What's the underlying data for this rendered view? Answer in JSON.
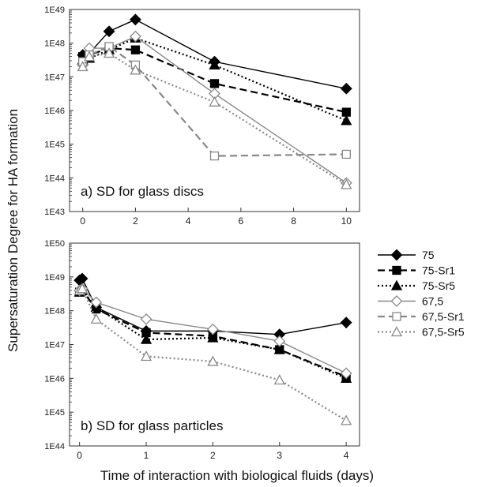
{
  "y_axis_title": "Supersaturation Degree for HA formation",
  "x_axis_title": "Time of interaction with biological fluids (days)",
  "legend": [
    {
      "key": "75",
      "label": "75",
      "color": "#000000",
      "dash": "solid",
      "marker": "diamond",
      "fill": "filled"
    },
    {
      "key": "75-Sr1",
      "label": "75-Sr1",
      "color": "#000000",
      "dash": "dash",
      "marker": "square",
      "fill": "filled"
    },
    {
      "key": "75-Sr5",
      "label": "75-Sr5",
      "color": "#000000",
      "dash": "dot",
      "marker": "triangle",
      "fill": "filled"
    },
    {
      "key": "67,5",
      "label": "67,5",
      "color": "#888888",
      "dash": "solid",
      "marker": "diamond",
      "fill": "open"
    },
    {
      "key": "67,5-Sr1",
      "label": "67,5-Sr1",
      "color": "#888888",
      "dash": "dash",
      "marker": "square",
      "fill": "open"
    },
    {
      "key": "67,5-Sr5",
      "label": "67,5-Sr5",
      "color": "#888888",
      "dash": "dot",
      "marker": "triangle",
      "fill": "open"
    }
  ],
  "chart_data": [
    {
      "type": "line",
      "title": "a)  SD for glass discs",
      "xlabel": "",
      "ylabel": "Supersaturation Degree for HA formation",
      "y_scale": "log",
      "ylim_exp": [
        43,
        49
      ],
      "y_tick_labels": [
        "1E43",
        "1E44",
        "1E45",
        "1E46",
        "1E47",
        "1E48",
        "1E49"
      ],
      "xlim": [
        -0.5,
        10.5
      ],
      "x_ticks": [
        0,
        2,
        4,
        6,
        8,
        10
      ],
      "x_tick_labels": [
        "0",
        "2",
        "4",
        "6",
        "8",
        "10"
      ],
      "series": [
        {
          "name": "75",
          "x": [
            0,
            0.25,
            1,
            2,
            5,
            10
          ],
          "log10_y": [
            47.65,
            47.7,
            48.35,
            48.7,
            47.45,
            46.65
          ]
        },
        {
          "name": "75-Sr1",
          "x": [
            0,
            0.25,
            1,
            2,
            5,
            10
          ],
          "log10_y": [
            47.6,
            47.65,
            47.85,
            47.8,
            46.8,
            45.95
          ]
        },
        {
          "name": "75-Sr5",
          "x": [
            0,
            0.25,
            1,
            2,
            5,
            10
          ],
          "log10_y": [
            47.5,
            47.55,
            47.8,
            48.15,
            47.35,
            45.7
          ]
        },
        {
          "name": "67,5",
          "x": [
            0,
            0.25,
            1,
            2,
            5,
            10
          ],
          "log10_y": [
            47.35,
            47.85,
            47.85,
            48.2,
            46.5,
            43.85
          ]
        },
        {
          "name": "67,5-Sr1",
          "x": [
            0,
            0.25,
            1,
            2,
            5,
            10
          ],
          "log10_y": [
            47.45,
            47.65,
            47.9,
            47.35,
            44.65,
            44.7
          ]
        },
        {
          "name": "67,5-Sr5",
          "x": [
            0,
            0.25,
            1,
            2,
            5,
            10
          ],
          "log10_y": [
            47.3,
            47.6,
            47.7,
            47.2,
            46.25,
            43.8
          ]
        }
      ]
    },
    {
      "type": "line",
      "title": "b)  SD for glass particles",
      "xlabel": "Time of interaction with biological fluids (days)",
      "ylabel": "Supersaturation Degree for HA formation",
      "y_scale": "log",
      "ylim_exp": [
        44,
        50
      ],
      "y_tick_labels": [
        "1E44",
        "1E45",
        "1E46",
        "1E47",
        "1E48",
        "1E49",
        "1E50"
      ],
      "xlim": [
        -0.15,
        4.2
      ],
      "x_ticks": [
        0,
        1,
        2,
        3,
        4
      ],
      "x_tick_labels": [
        "0",
        "1",
        "2",
        "3",
        "4"
      ],
      "series": [
        {
          "name": "75",
          "x": [
            0,
            0.04,
            0.25,
            1,
            2,
            3,
            4
          ],
          "log10_y": [
            48.9,
            48.95,
            48.1,
            47.4,
            47.4,
            47.3,
            47.65
          ]
        },
        {
          "name": "75-Sr1",
          "x": [
            0,
            0.04,
            0.25,
            1,
            2,
            3,
            4
          ],
          "log10_y": [
            48.55,
            48.6,
            48.05,
            47.35,
            47.25,
            46.85,
            46.05
          ]
        },
        {
          "name": "75-Sr5",
          "x": [
            0,
            0.04,
            0.25,
            1,
            2,
            3,
            4
          ],
          "log10_y": [
            48.55,
            48.6,
            48.1,
            47.15,
            47.2,
            46.85,
            46.0
          ]
        },
        {
          "name": "67,5",
          "x": [
            0,
            0.04,
            0.25,
            1,
            2,
            3,
            4
          ],
          "log10_y": [
            48.6,
            48.65,
            48.25,
            47.75,
            47.45,
            47.1,
            46.15
          ]
        },
        {
          "name": "67,5-Sr1",
          "x": [],
          "log10_y": []
        },
        {
          "name": "67,5-Sr5",
          "x": [
            0,
            0.04,
            0.25,
            1,
            2,
            3,
            4
          ],
          "log10_y": [
            48.6,
            48.65,
            47.75,
            46.65,
            46.5,
            45.95,
            44.75
          ]
        }
      ]
    }
  ]
}
